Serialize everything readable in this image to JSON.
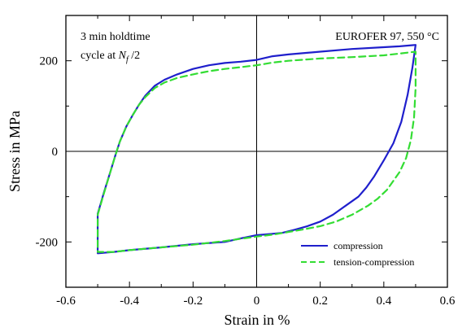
{
  "chart_data": {
    "type": "line",
    "title": "",
    "xlabel": "Strain in %",
    "ylabel": "Stress in MPa",
    "xlim": [
      -0.6,
      0.6
    ],
    "ylim": [
      -300,
      300
    ],
    "xticks": [
      -0.6,
      -0.4,
      -0.2,
      0,
      0.2,
      0.4,
      0.6
    ],
    "xtick_labels": [
      "-0.6",
      "-0.4",
      "-0.2",
      "0",
      "0.2",
      "0.4",
      "0.6"
    ],
    "yticks": [
      -200,
      0,
      200
    ],
    "ytick_labels": [
      "-200",
      "0",
      "200"
    ],
    "grid": false,
    "zero_lines": true,
    "legend_position": "bottom-right",
    "annotations": {
      "top_left_line1": "3 min holdtime",
      "top_left_line2_prefix": "cycle at ",
      "top_left_N": "N",
      "top_left_sub": "f",
      "top_left_suffix": " /2",
      "top_right": "EUROFER 97, 550 °C"
    },
    "series": [
      {
        "name": "compression",
        "color": "#1f1fcc",
        "style": "solid",
        "x": [
          -0.5,
          -0.48,
          -0.46,
          -0.445,
          -0.43,
          -0.41,
          -0.39,
          -0.37,
          -0.35,
          -0.32,
          -0.29,
          -0.25,
          -0.2,
          -0.15,
          -0.1,
          -0.05,
          0,
          0.05,
          0.1,
          0.2,
          0.3,
          0.4,
          0.45,
          0.5,
          0.49,
          0.475,
          0.455,
          0.43,
          0.4,
          0.37,
          0.345,
          0.32,
          0.28,
          0.24,
          0.2,
          0.16,
          0.12,
          0.08,
          0.05,
          0.02,
          0,
          -0.05,
          -0.1,
          -0.2,
          -0.3,
          -0.4,
          -0.45,
          -0.5,
          -0.5
        ],
        "y": [
          -138,
          -90,
          -45,
          -10,
          22,
          55,
          80,
          103,
          123,
          145,
          158,
          170,
          182,
          190,
          195,
          198,
          202,
          210,
          214,
          220,
          226,
          230,
          232,
          235,
          185,
          125,
          65,
          18,
          -20,
          -55,
          -80,
          -100,
          -120,
          -140,
          -155,
          -165,
          -173,
          -180,
          -182,
          -184,
          -185,
          -192,
          -200,
          -205,
          -212,
          -218,
          -222,
          -225,
          -138
        ]
      },
      {
        "name": "tension-compression",
        "color": "#33dd33",
        "style": "dashed",
        "x": [
          -0.5,
          -0.48,
          -0.46,
          -0.445,
          -0.43,
          -0.41,
          -0.39,
          -0.37,
          -0.35,
          -0.32,
          -0.29,
          -0.25,
          -0.2,
          -0.15,
          -0.1,
          -0.05,
          0,
          0.05,
          0.1,
          0.2,
          0.3,
          0.4,
          0.45,
          0.5,
          0.5,
          0.495,
          0.485,
          0.47,
          0.45,
          0.43,
          0.41,
          0.38,
          0.35,
          0.3,
          0.25,
          0.2,
          0.15,
          0.1,
          0.05,
          0,
          -0.1,
          -0.2,
          -0.3,
          -0.4,
          -0.45,
          -0.5,
          -0.5
        ],
        "y": [
          -140,
          -92,
          -45,
          -10,
          22,
          55,
          80,
          103,
          120,
          140,
          152,
          162,
          170,
          177,
          182,
          186,
          190,
          196,
          200,
          205,
          208,
          212,
          216,
          220,
          140,
          75,
          25,
          -15,
          -45,
          -65,
          -85,
          -105,
          -120,
          -140,
          -155,
          -165,
          -172,
          -178,
          -184,
          -188,
          -198,
          -206,
          -212,
          -218,
          -222,
          -222,
          -140
        ]
      }
    ]
  }
}
